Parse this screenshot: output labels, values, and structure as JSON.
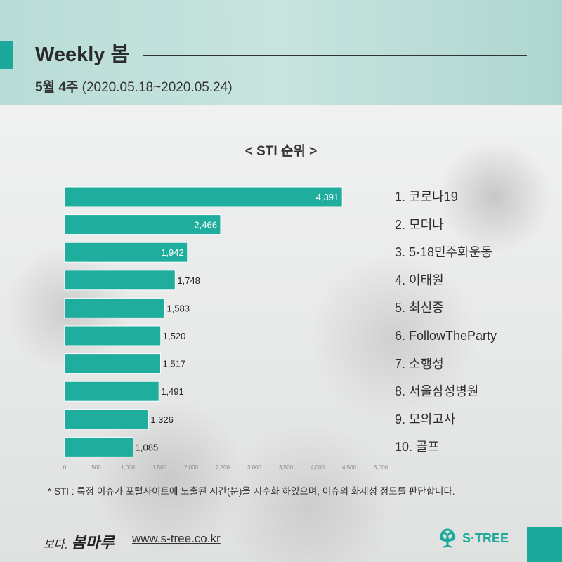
{
  "header": {
    "title": "Weekly 봄",
    "week": "5월 4주",
    "period": "(2020.05.18~2020.05.24)"
  },
  "colors": {
    "accent": "#1aa99a",
    "bar_fill": "#1fae9e",
    "header_band": "#c0e0db"
  },
  "chart_data": {
    "type": "bar",
    "orientation": "horizontal",
    "title": "< STI 순위 >",
    "categories": [
      "코로나19",
      "모더나",
      "5·18민주화운동",
      "이태원",
      "최신종",
      "FollowTheParty",
      "소행성",
      "서울삼성병원",
      "모의고사",
      "골프"
    ],
    "values": [
      4391,
      2466,
      1942,
      1748,
      1583,
      1520,
      1517,
      1491,
      1326,
      1085
    ],
    "value_labels": [
      "4,391",
      "2,466",
      "1,942",
      "1,748",
      "1,583",
      "1,520",
      "1,517",
      "1,491",
      "1,326",
      "1,085"
    ],
    "xlim": [
      0,
      5000
    ],
    "x_ticks": [
      "0",
      "500",
      "1,000",
      "1,500",
      "2,000",
      "2,500",
      "3,000",
      "3,500",
      "4,000",
      "4,500",
      "5,000"
    ],
    "grid": false,
    "xlabel": "",
    "ylabel": ""
  },
  "ranking": [
    "1. 코로나19",
    "2. 모더나",
    "3. 5·18민주화운동",
    "4. 이태원",
    "5. 최신종",
    "6. FollowTheParty",
    "7. 소행성",
    "8. 서울삼성병원",
    "9. 모의고사",
    "10. 골프"
  ],
  "footnote": "* STI : 특정 이슈가 포털사이트에 노출된 시간(분)을 지수화 하였으며, 이슈의 화제성 정도를 판단합니다.",
  "footer": {
    "brand_small": "보다,",
    "brand_big": "봄마루",
    "url": "www.s-tree.co.kr",
    "logo_text": "S·TREE",
    "logo_icon": "tree-logo-icon"
  }
}
